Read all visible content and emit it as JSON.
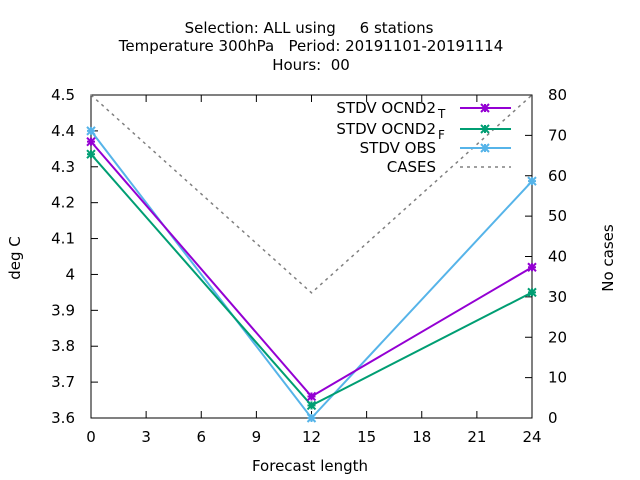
{
  "chart_data": {
    "type": "line",
    "title_lines": [
      "Selection: ALL using     6 stations",
      "Temperature 300hPa   Period: 20191101-20191114",
      "Hours:  00"
    ],
    "xlabel": "Forecast length",
    "ylabel": "deg C",
    "y2label": "No cases",
    "xlim": [
      0,
      24
    ],
    "ylim": [
      3.6,
      4.5
    ],
    "y2lim": [
      0,
      80
    ],
    "xticks": [
      0,
      3,
      6,
      9,
      12,
      15,
      18,
      21,
      24
    ],
    "yticks": [
      3.6,
      3.7,
      3.8,
      3.9,
      4.0,
      4.1,
      4.2,
      4.3,
      4.4,
      4.5
    ],
    "ytick_labels": [
      "3.6",
      "3.7",
      "3.8",
      "3.9",
      "4",
      "4.1",
      "4.2",
      "4.3",
      "4.4",
      "4.5"
    ],
    "y2ticks": [
      0,
      10,
      20,
      30,
      40,
      50,
      60,
      70,
      80
    ],
    "grid": false,
    "legend_position": "top-right",
    "series": [
      {
        "name": "STDV OCND2",
        "subscript": "T",
        "color": "#9400d3",
        "marker": "cross",
        "axis": "y1",
        "x": [
          0,
          12,
          24
        ],
        "values": [
          4.37,
          3.66,
          4.02
        ]
      },
      {
        "name": "STDV OCND2",
        "subscript": "F",
        "color": "#009e73",
        "marker": "cross",
        "axis": "y1",
        "x": [
          0,
          12,
          24
        ],
        "values": [
          4.335,
          3.635,
          3.95
        ]
      },
      {
        "name": "STDV OBS",
        "subscript": "",
        "color": "#56b4e9",
        "marker": "cross",
        "axis": "y1",
        "x": [
          0,
          12,
          24
        ],
        "values": [
          4.4,
          3.6,
          4.26
        ]
      },
      {
        "name": "CASES",
        "subscript": "",
        "color": "#808080",
        "marker": "none",
        "dashed": true,
        "axis": "y2",
        "x": [
          0,
          12,
          24
        ],
        "values": [
          80,
          31,
          80
        ]
      }
    ]
  }
}
